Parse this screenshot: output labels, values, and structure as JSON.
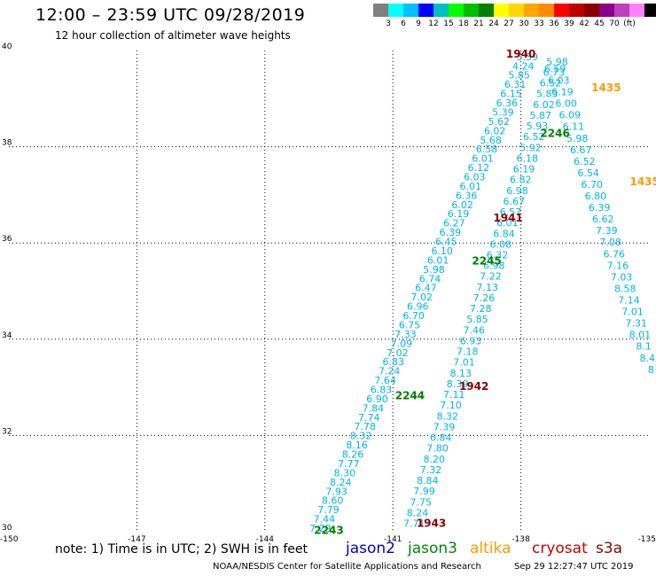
{
  "header": {
    "title": "12:00 – 23:59 UTC 09/28/2019",
    "subtitle": "12 hour collection of altimeter wave heights"
  },
  "legend": {
    "colors": [
      "#808080",
      "#00ffff",
      "#00bfff",
      "#0000ff",
      "#00bfbf",
      "#00ff00",
      "#00bf00",
      "#008000",
      "#ffff00",
      "#ffd700",
      "#ffa500",
      "#ff8c00",
      "#ff0000",
      "#bf0000",
      "#8b0000",
      "#8b008b",
      "#bf3fbf",
      "#ff80ff",
      "#000000"
    ],
    "labels": [
      "3",
      "6",
      "9",
      "12",
      "15",
      "18",
      "21",
      "24",
      "27",
      "30",
      "33",
      "36",
      "39",
      "42",
      "45",
      "70",
      "(ft)"
    ]
  },
  "map": {
    "lon_range": [
      -150,
      -135
    ],
    "lat_range": [
      30,
      40
    ],
    "lon_ticks": [
      "-150",
      "-147",
      "-144",
      "-141",
      "-138",
      "-135"
    ],
    "lat_ticks": [
      "40",
      "38",
      "36",
      "34",
      "32",
      "30"
    ],
    "track_color": "#00b4e6",
    "track_a": [
      "5.39",
      "4.24",
      "5.85",
      "6.31",
      "6.15",
      "6.36",
      "5.39",
      "5.62",
      "6.02",
      "5.68",
      "6.58",
      "6.01",
      "6.12",
      "6.03",
      "6.01",
      "6.36",
      "6.02",
      "6.19",
      "6.27",
      "6.39",
      "6.45",
      "6.10",
      "6.01",
      "5.98",
      "6.74",
      "6.47",
      "7.02",
      "6.96",
      "6.70",
      "6.75",
      "7.33",
      "7.09",
      "7.02",
      "6.83",
      "7.24",
      "7.64",
      "6.83",
      "6.90",
      "7.84",
      "7.74",
      "7.78",
      "8.32",
      "8.16",
      "8.26",
      "7.77",
      "8.30",
      "8.24",
      "7.93",
      "8.60",
      "7.79",
      "7.44",
      "7.29"
    ],
    "track_b": [
      "5.98",
      "6.73",
      "6.52",
      "5.83",
      "6.02",
      "5.87",
      "5.93",
      "6.52",
      "5.92",
      "6.18",
      "6.19",
      "6.82",
      "6.98",
      "6.67",
      "6.57",
      "6.01",
      "6.84",
      "6.08",
      "6.32",
      "6.98",
      "7.22",
      "7.13",
      "7.26",
      "7.28",
      "5.85",
      "7.46",
      "6.93",
      "7.18",
      "7.01",
      "8.13",
      "8.39",
      "7.11",
      "7.10",
      "8.32",
      "7.39",
      "6.84",
      "7.80",
      "8.20",
      "7.32",
      "8.84",
      "7.99",
      "7.75",
      "8.24",
      "7.71"
    ],
    "track_c": [
      "6.59",
      "6.03",
      "6.19",
      "6.00",
      "6.09",
      "6.11",
      "5.98",
      "6.67",
      "6.52",
      "6.54",
      "6.70",
      "6.80",
      "6.39",
      "6.62",
      "7.39",
      "7.08",
      "6.76",
      "7.16",
      "7.03",
      "8.58",
      "7.14",
      "7.01",
      "7.31",
      "8.01",
      "8.1",
      "8.4",
      "8"
    ],
    "time_labels": [
      {
        "text": "1940",
        "color": "#8b0000",
        "lon": -138.0,
        "lat": 39.85
      },
      {
        "text": "1435",
        "color": "#ff9900",
        "lon": -136.0,
        "lat": 39.15
      },
      {
        "text": "2246",
        "color": "#008000",
        "lon": -137.2,
        "lat": 38.2
      },
      {
        "text": "1435",
        "color": "#ff9900",
        "lon": -135.1,
        "lat": 37.2
      },
      {
        "text": "1941",
        "color": "#8b0000",
        "lon": -138.3,
        "lat": 36.45
      },
      {
        "text": "2245",
        "color": "#008000",
        "lon": -138.8,
        "lat": 35.55
      },
      {
        "text": "1942",
        "color": "#8b0000",
        "lon": -139.1,
        "lat": 32.95
      },
      {
        "text": "2244",
        "color": "#008000",
        "lon": -140.6,
        "lat": 32.75
      },
      {
        "text": "1943",
        "color": "#8b0000",
        "lon": -140.1,
        "lat": 30.1
      },
      {
        "text": "2243",
        "color": "#008000",
        "lon": -142.5,
        "lat": 29.95
      }
    ]
  },
  "footer": {
    "note": "note: 1) Time is in UTC; 2) SWH is in feet",
    "satellites": [
      {
        "name": "jason2",
        "color": "#0000cc"
      },
      {
        "name": "jason3",
        "color": "#008800"
      },
      {
        "name": "altika",
        "color": "#ff9900"
      },
      {
        "name": "cryosat",
        "color": "#cc0000"
      },
      {
        "name": "s3a",
        "color": "#8b0000"
      }
    ],
    "credit": "NOAA/NESDIS Center for Satellite Applications and Research",
    "timestamp": "Sep 29 12:27:47 UTC 2019"
  }
}
